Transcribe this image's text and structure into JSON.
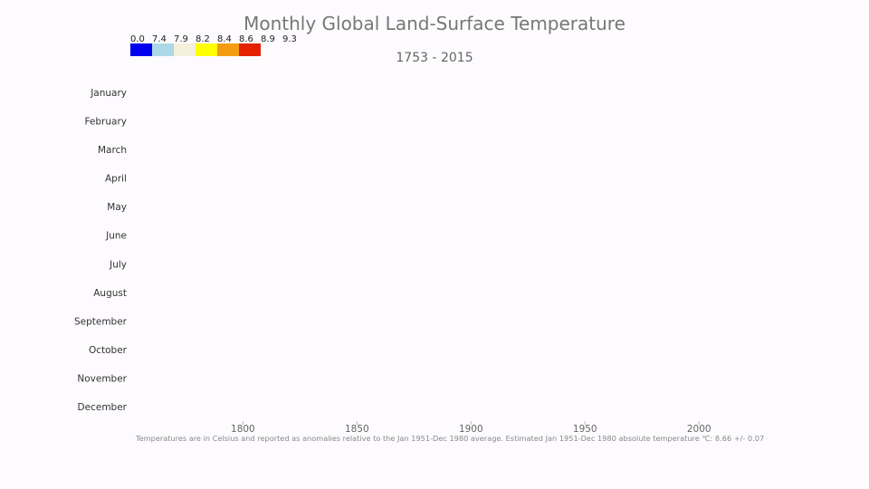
{
  "chart_data": {
    "type": "heatmap",
    "title": "Monthly Global Land-Surface Temperature",
    "subtitle": "1753 - 2015",
    "xlabel": "",
    "ylabel": "",
    "x_range": [
      1753,
      2015
    ],
    "x_ticks": [
      "1800",
      "1850",
      "1900",
      "1950",
      "2000"
    ],
    "y_categories": [
      "January",
      "February",
      "March",
      "April",
      "May",
      "June",
      "July",
      "August",
      "September",
      "October",
      "November",
      "December"
    ],
    "legend": {
      "thresholds": [
        "0.0",
        "7.4",
        "7.9",
        "8.2",
        "8.4",
        "8.6",
        "8.9",
        "9.3"
      ],
      "colors": [
        "#0000ee",
        "#add8e6",
        "#f5f0dc",
        "#ffff00",
        "#f39c12",
        "#e52200"
      ],
      "placement": "top-left"
    },
    "cells": [],
    "grid": false
  },
  "footnote": "Temperatures are in Celsius and reported as anomalies relative to the Jan 1951-Dec 1980 average. Estimated Jan 1951-Dec 1980 absolute temperature ℃: 8.66 +/- 0.07"
}
